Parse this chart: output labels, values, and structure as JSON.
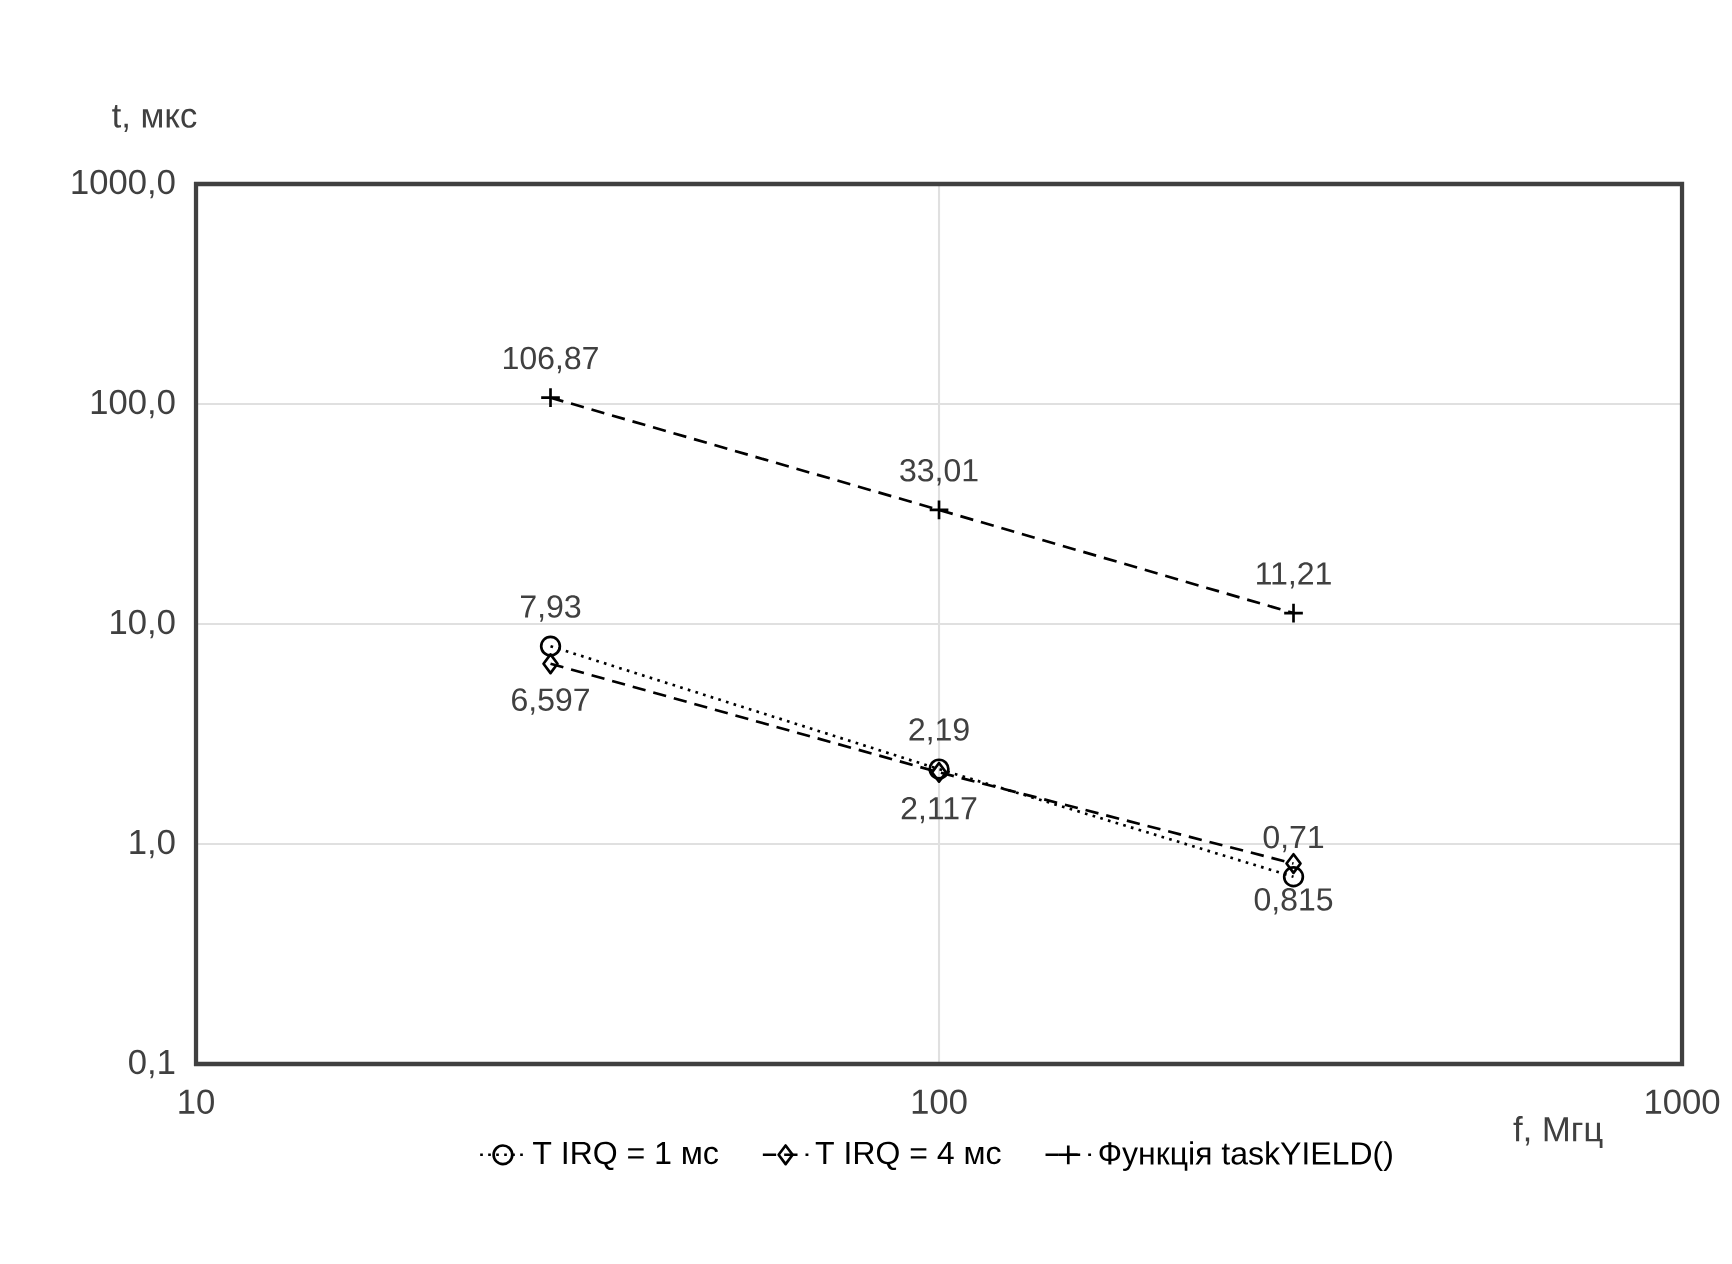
{
  "chart_data": {
    "type": "line",
    "xlabel": "f, Мгц",
    "ylabel": "t, мкс",
    "x": [
      30,
      100,
      300
    ],
    "series": [
      {
        "name": "T IRQ = 1 мс",
        "color": "#000000",
        "marker": "circle",
        "line_style": "dotted",
        "values": [
          7.93,
          2.19,
          0.71
        ],
        "value_labels": [
          "7,93",
          "2,19",
          "0,71"
        ]
      },
      {
        "name": "T IRQ = 4 мс",
        "color": "#000000",
        "marker": "diamond",
        "line_style": "dashed",
        "values": [
          6.597,
          2.117,
          0.815
        ],
        "value_labels": [
          "6,597",
          "2,117",
          "0,815"
        ]
      },
      {
        "name": "Функція taskYIELD()",
        "color": "#000000",
        "marker": "cross",
        "line_style": "dashed",
        "values": [
          106.87,
          33.01,
          11.21
        ],
        "value_labels": [
          "106,87",
          "33,01",
          "11,21"
        ]
      }
    ],
    "log": "xy",
    "xlim": [
      10,
      1000
    ],
    "ylim": [
      0.1,
      1000
    ],
    "xticks": [
      10,
      100,
      1000
    ],
    "yticks": [
      {
        "value": 0.1,
        "label": "0,1"
      },
      {
        "value": 1,
        "label": "1,0"
      },
      {
        "value": 10,
        "label": "10,0"
      },
      {
        "value": 100,
        "label": "100,0"
      },
      {
        "value": 1000,
        "label": "1000,0"
      }
    ],
    "grid": true,
    "legend": "bottom"
  }
}
